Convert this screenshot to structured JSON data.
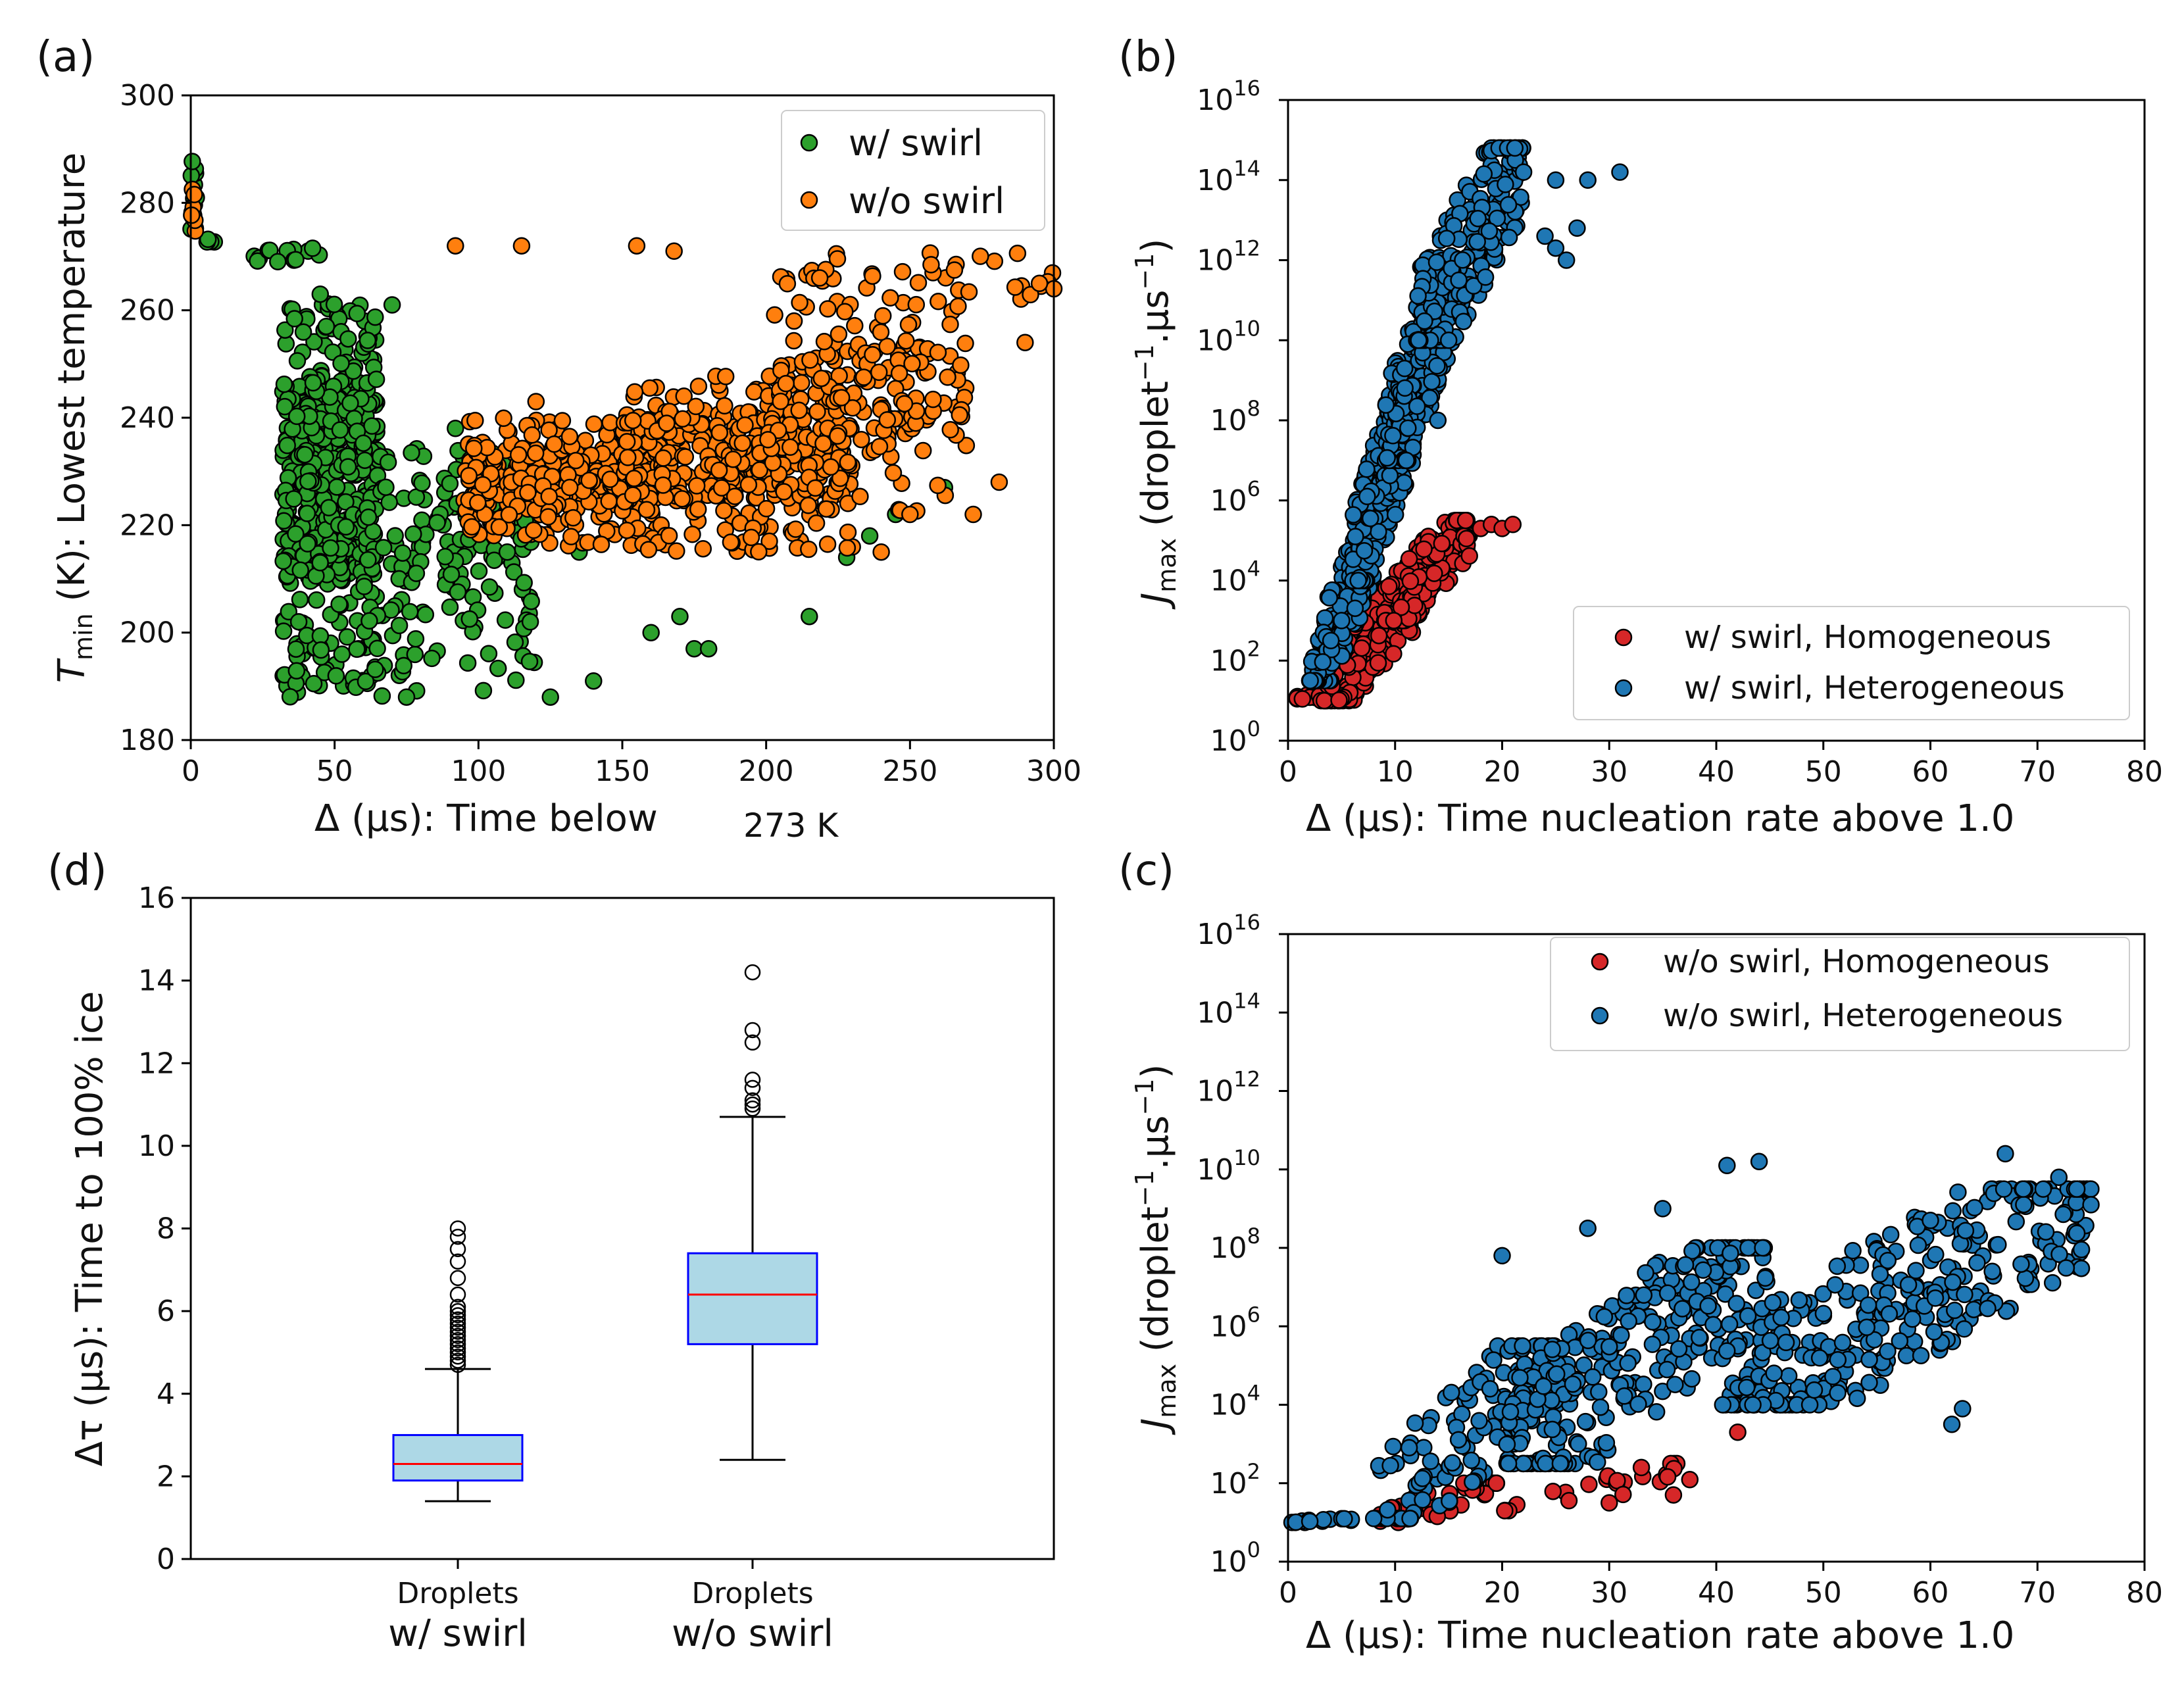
{
  "colors": {
    "green": "#2ca02c",
    "orange": "#ff7f0e",
    "red": "#d62728",
    "blue": "#1f77b4",
    "box_fill": "#add8e6",
    "box_edge": "#0000ff",
    "median": "#ff0000"
  },
  "chart_data": [
    {
      "id": "a",
      "panel": "(a)",
      "type": "scatter",
      "xlabel": "Δ (μs): Time below",
      "xlabel_suffix": "273 K",
      "ylabel_sym": "T",
      "ylabel_sub": "min",
      "ylabel_rest": " (K): Lowest temperature",
      "xlim": [
        0,
        300
      ],
      "ylim": [
        180,
        300
      ],
      "xticks": [
        "0",
        "50",
        "100",
        "150",
        "200",
        "250",
        "300"
      ],
      "yticks": [
        "180",
        "200",
        "220",
        "240",
        "260",
        "280",
        "300"
      ],
      "legend": [
        "w/  swirl",
        "w/o swirl"
      ],
      "series": [
        {
          "name": "w/  swirl",
          "color": "#2ca02c",
          "clusters": [
            {
              "x": [
                0,
                2
              ],
              "y": [
                273,
                289
              ],
              "n": 12,
              "log": false
            },
            {
              "x": [
                3,
                10
              ],
              "y": [
                272,
                274
              ],
              "n": 4,
              "log": false
            },
            {
              "x": [
                22,
                45
              ],
              "y": [
                268,
                272
              ],
              "n": 14,
              "log": false
            },
            {
              "x": [
                32,
                65
              ],
              "y": [
                188,
                262
              ],
              "n": 520,
              "log": false
            },
            {
              "x": [
                60,
                120
              ],
              "y": [
                188,
                235
              ],
              "n": 170,
              "log": false
            }
          ],
          "points": [
            [
              45,
              263
            ],
            [
              70,
              261
            ],
            [
              92,
              238
            ],
            [
              170,
              203
            ],
            [
              175,
              197
            ],
            [
              180,
              197
            ],
            [
              215,
              203
            ],
            [
              228,
              214
            ],
            [
              236,
              218
            ],
            [
              245,
              222
            ],
            [
              262,
              227
            ],
            [
              75,
              188
            ],
            [
              125,
              188
            ],
            [
              140,
              191
            ],
            [
              160,
              200
            ],
            [
              110,
              215
            ],
            [
              118,
              202
            ],
            [
              135,
              215
            ]
          ]
        },
        {
          "name": "w/o swirl",
          "color": "#ff7f0e",
          "clusters": [
            {
              "x": [
                0,
                2
              ],
              "y": [
                273,
                284
              ],
              "n": 10,
              "log": false
            },
            {
              "x": [
                95,
                165
              ],
              "y": [
                216,
                240
              ],
              "n": 320,
              "log": false
            },
            {
              "x": [
                150,
                230
              ],
              "y": [
                215,
                248
              ],
              "n": 380,
              "log": false
            },
            {
              "x": [
                200,
                270
              ],
              "y": [
                222,
                262
              ],
              "n": 180,
              "log": false
            },
            {
              "x": [
                205,
                300
              ],
              "y": [
                260,
                271
              ],
              "n": 40,
              "log": false
            }
          ],
          "points": [
            [
              92,
              272
            ],
            [
              115,
              272
            ],
            [
              155,
              272
            ],
            [
              168,
              271
            ],
            [
              272,
              222
            ],
            [
              281,
              228
            ],
            [
              300,
              264
            ],
            [
              290,
              254
            ],
            [
              295,
              265
            ],
            [
              120,
              243
            ],
            [
              240,
              215
            ],
            [
              250,
              222
            ]
          ]
        }
      ]
    },
    {
      "id": "b",
      "panel": "(b)",
      "type": "scatter",
      "xlabel": "Δ (μs): Time nucleation rate above 1.0",
      "ylabel": "(droplet",
      "ylabel_mid": ".μs",
      "ylabel_end": ")",
      "xlim": [
        0,
        80
      ],
      "ylim_exp": [
        0,
        16
      ],
      "xticks": [
        "0",
        "10",
        "20",
        "30",
        "40",
        "50",
        "60",
        "70",
        "80"
      ],
      "yticks": [
        "10",
        "10",
        "10",
        "10",
        "10",
        "10",
        "10",
        "10",
        "10"
      ],
      "yexp": [
        "0",
        "2",
        "4",
        "6",
        "8",
        "10",
        "12",
        "14",
        "16"
      ],
      "legend": [
        "w/ swirl, Homogeneous",
        "w/ swirl, Heterogeneous"
      ],
      "series": [
        {
          "name": "w/ swirl, Homogeneous",
          "color": "#d62728",
          "clusters": [
            {
              "x": [
                0,
                4
              ],
              "y": [
                1,
                1.2
              ],
              "n": 12,
              "log": true
            },
            {
              "x": [
                3,
                12
              ],
              "y": [
                1,
                3.8
              ],
              "n": 160,
              "log": true
            },
            {
              "x": [
                9,
                17
              ],
              "y": [
                3,
                5.5
              ],
              "n": 190,
              "log": true
            }
          ],
          "points": [
            [
              18,
              5.3
            ],
            [
              19,
              5.4
            ],
            [
              20,
              5.3
            ],
            [
              21,
              5.4
            ]
          ]
        },
        {
          "name": "w/ swirl, Heterogeneous",
          "color": "#1f77b4",
          "clusters": [
            {
              "x": [
                2,
                8
              ],
              "y": [
                1.5,
                5
              ],
              "n": 130,
              "log": true
            },
            {
              "x": [
                6,
                12
              ],
              "y": [
                4,
                9
              ],
              "n": 200,
              "log": true
            },
            {
              "x": [
                9,
                16
              ],
              "y": [
                7,
                12
              ],
              "n": 220,
              "log": true
            },
            {
              "x": [
                12,
                22
              ],
              "y": [
                10,
                14.8
              ],
              "n": 220,
              "log": true
            }
          ],
          "points": [
            [
              22,
              14.2
            ],
            [
              25,
              14.0
            ],
            [
              28,
              14.0
            ],
            [
              31,
              14.2
            ],
            [
              24,
              12.6
            ],
            [
              25,
              12.3
            ],
            [
              26,
              12.0
            ],
            [
              27,
              12.8
            ],
            [
              5,
              3
            ],
            [
              4,
              2.5
            ],
            [
              14,
              8
            ]
          ]
        }
      ]
    },
    {
      "id": "c",
      "panel": "(c)",
      "type": "scatter",
      "xlabel": "Δ (μs): Time nucleation rate above 1.0",
      "ylabel": "(droplet",
      "ylabel_mid": ".μs",
      "ylabel_end": ")",
      "xlim": [
        0,
        80
      ],
      "ylim_exp": [
        0,
        16
      ],
      "xticks": [
        "0",
        "10",
        "20",
        "30",
        "40",
        "50",
        "60",
        "70",
        "80"
      ],
      "yticks": [
        "10",
        "10",
        "10",
        "10",
        "10",
        "10",
        "10",
        "10",
        "10"
      ],
      "yexp": [
        "0",
        "2",
        "4",
        "6",
        "8",
        "10",
        "12",
        "14",
        "16"
      ],
      "legend": [
        "w/o swirl, Homogeneous",
        "w/o swirl, Heterogeneous"
      ],
      "series": [
        {
          "name": "w/o swirl, Homogeneous",
          "color": "#d62728",
          "clusters": [
            {
              "x": [
                8,
                20
              ],
              "y": [
                1,
                2
              ],
              "n": 30,
              "log": true
            },
            {
              "x": [
                20,
                38
              ],
              "y": [
                1.3,
                2.5
              ],
              "n": 24,
              "log": true
            }
          ],
          "points": [
            [
              42,
              3.3
            ],
            [
              36,
              1.7
            ],
            [
              30,
              1.5
            ],
            [
              33,
              2.4
            ]
          ]
        },
        {
          "name": "w/o swirl, Heterogeneous",
          "color": "#1f77b4",
          "clusters": [
            {
              "x": [
                0,
                7
              ],
              "y": [
                1,
                1.1
              ],
              "n": 14,
              "log": true
            },
            {
              "x": [
                8,
                25
              ],
              "y": [
                1.1,
                5.5
              ],
              "n": 120,
              "log": true
            },
            {
              "x": [
                20,
                45
              ],
              "y": [
                2.5,
                8
              ],
              "n": 260,
              "log": true
            },
            {
              "x": [
                40,
                75
              ],
              "y": [
                4,
                9.5
              ],
              "n": 320,
              "log": true
            }
          ],
          "points": [
            [
              41,
              10.1
            ],
            [
              44,
              10.2
            ],
            [
              35,
              9
            ],
            [
              60,
              8.7
            ],
            [
              67,
              10.4
            ],
            [
              72,
              9.8
            ],
            [
              75,
              9.1
            ],
            [
              62,
              3.5
            ],
            [
              63,
              3.9
            ],
            [
              20,
              7.8
            ],
            [
              28,
              8.5
            ]
          ]
        }
      ]
    },
    {
      "id": "d",
      "panel": "(d)",
      "type": "box",
      "ylabel": "Δτ (μs): Time to 100% ice",
      "ylim": [
        0,
        16
      ],
      "yticks": [
        "0",
        "2",
        "4",
        "6",
        "8",
        "10",
        "12",
        "14",
        "16"
      ],
      "categories": [
        {
          "line1": "Droplets",
          "line2": "w/ swirl"
        },
        {
          "line1": "Droplets",
          "line2": "w/o swirl"
        }
      ],
      "boxes": [
        {
          "whislo": 1.4,
          "q1": 1.9,
          "med": 2.3,
          "q3": 3.0,
          "whishi": 4.6,
          "fliers": [
            4.7,
            4.8,
            4.9,
            5.0,
            5.1,
            5.2,
            5.3,
            5.4,
            5.5,
            5.6,
            5.7,
            5.8,
            5.9,
            6.0,
            6.1,
            6.4,
            6.8,
            7.2,
            7.5,
            7.8,
            8.0
          ]
        },
        {
          "whislo": 2.4,
          "q1": 5.2,
          "med": 6.4,
          "q3": 7.4,
          "whishi": 10.7,
          "fliers": [
            10.9,
            11.0,
            11.1,
            11.4,
            11.6,
            12.5,
            12.8,
            14.2
          ]
        }
      ]
    }
  ]
}
